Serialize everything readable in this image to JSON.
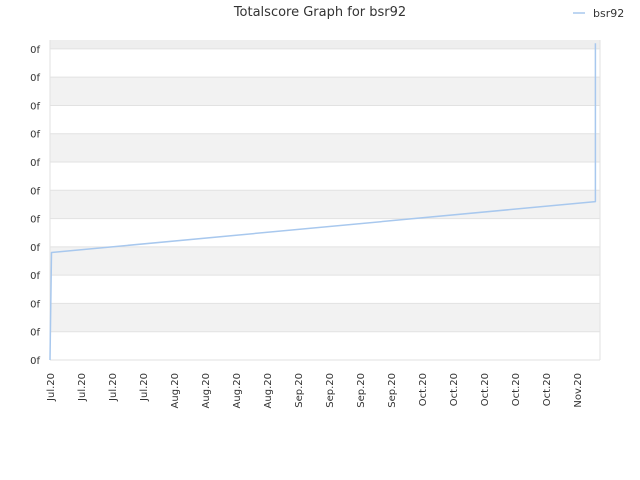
{
  "chart_data": {
    "type": "line",
    "title": "Totalscore Graph for bsr92",
    "xlabel": "",
    "ylabel": "",
    "legend": {
      "position": "top-right",
      "entries": [
        "bsr92"
      ]
    },
    "grid": true,
    "ylim": [
      0,
      11
    ],
    "y_ticks": [
      "0f",
      "0f",
      "0f",
      "0f",
      "0f",
      "0f",
      "0f",
      "0f",
      "0f",
      "0f",
      "0f",
      "0f"
    ],
    "x_ticks": [
      "Jul.20",
      "Jul.20",
      "Jul.20",
      "Jul.20",
      "Aug.20",
      "Aug.20",
      "Aug.20",
      "Aug.20",
      "Sep.20",
      "Sep.20",
      "Sep.20",
      "Sep.20",
      "Oct.20",
      "Oct.20",
      "Oct.20",
      "Oct.20",
      "Oct.20",
      "Nov.20"
    ],
    "x_range": [
      0,
      17.75
    ],
    "series": [
      {
        "name": "bsr92",
        "color": "#a8c8ee",
        "x": [
          0,
          0.05,
          17.6,
          17.6
        ],
        "y": [
          0,
          3.8,
          5.6,
          11.2
        ]
      }
    ]
  }
}
